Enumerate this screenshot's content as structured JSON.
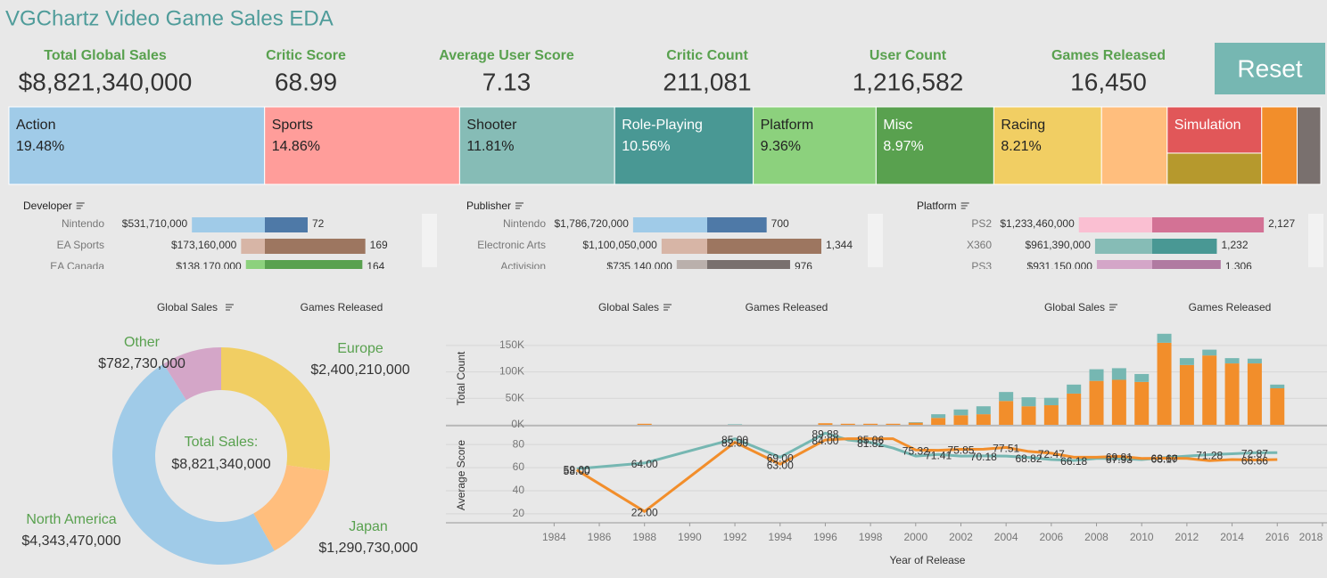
{
  "header": {
    "title": "VGChartz Video Game Sales EDA"
  },
  "kpis": [
    {
      "label": "Total Global Sales",
      "value": "$8,821,340,000"
    },
    {
      "label": "Critic Score",
      "value": "68.99"
    },
    {
      "label": "Average User Score",
      "value": "7.13"
    },
    {
      "label": "Critic Count",
      "value": "211,081"
    },
    {
      "label": "User Count",
      "value": "1,216,582"
    },
    {
      "label": "Games Released",
      "value": "16,450"
    }
  ],
  "reset": "Reset",
  "chart_data": [
    {
      "type": "treemap",
      "categories": [
        "Action",
        "Sports",
        "Shooter",
        "Role-Playing",
        "Platform",
        "Misc",
        "Racing",
        null,
        "Simulation",
        null,
        null,
        null
      ],
      "values": [
        19.48,
        14.86,
        11.81,
        10.56,
        9.36,
        8.97,
        8.21,
        5.0,
        4.3,
        2.9,
        2.7,
        1.8
      ],
      "value_labels": [
        "19.48%",
        "14.86%",
        "11.81%",
        "10.56%",
        "9.36%",
        "8.97%",
        "8.21%",
        null,
        null,
        null,
        null,
        null
      ],
      "colors": [
        "#a0cbe8",
        "#ff9d9a",
        "#86bcb6",
        "#499894",
        "#8cd17d",
        "#59a14f",
        "#f1ce63",
        "#ffbe7d",
        "#e15759",
        "#b6992d",
        "#f28e2b",
        "#79706e"
      ]
    },
    {
      "type": "dual-bar",
      "title": "Developer",
      "categories": [
        "Nintendo",
        "EA Sports",
        "EA Canada"
      ],
      "xlim": [
        0,
        650000000
      ],
      "x2lim": [
        0,
        150
      ],
      "series": [
        {
          "values": [
            531710000,
            173160000,
            138170000
          ],
          "value_labels": [
            "$531,710,000",
            "$173,160,000",
            "$138,170,000"
          ],
          "colors": [
            "#a0cbe8",
            "#d7b5a6",
            "#8cd17d"
          ]
        },
        {
          "values": [
            72,
            169,
            164
          ],
          "value_labels": [
            "72",
            "169",
            "164"
          ],
          "colors": [
            "#4e79a7",
            "#9d7660",
            "#59a14f"
          ]
        }
      ]
    },
    {
      "type": "dual-bar",
      "title": "Publisher",
      "categories": [
        "Nintendo",
        "Electronic Arts",
        "Activision"
      ],
      "xlim": [
        0,
        2150000000
      ],
      "x2lim": [
        0,
        1050
      ],
      "series": [
        {
          "values": [
            1786720000,
            1100050000,
            735140000
          ],
          "value_labels": [
            "$1,786,720,000",
            "$1,100,050,000",
            "$735,140,000"
          ],
          "colors": [
            "#a0cbe8",
            "#d7b5a6",
            "#bab0ac"
          ]
        },
        {
          "values": [
            700,
            1344,
            976
          ],
          "value_labels": [
            "700",
            "1,344",
            "976"
          ],
          "colors": [
            "#4e79a7",
            "#9d7660",
            "#79706e"
          ]
        }
      ]
    },
    {
      "type": "dual-bar",
      "title": "Platform",
      "categories": [
        "PS2",
        "X360",
        "PS3"
      ],
      "xlim": [
        0,
        1500000000
      ],
      "x2lim": [
        0,
        1700
      ],
      "series": [
        {
          "values": [
            1233460000,
            961390000,
            931150000
          ],
          "value_labels": [
            "$1,233,460,000",
            "$961,390,000",
            "$931,150,000"
          ],
          "colors": [
            "#fabfd2",
            "#86bcb6",
            "#d4a6c8"
          ]
        },
        {
          "values": [
            2127,
            1232,
            1306
          ],
          "value_labels": [
            "2,127",
            "1,232",
            "1,306"
          ],
          "colors": [
            "#d37295",
            "#499894",
            "#b07aa1"
          ]
        }
      ]
    },
    {
      "type": "pie",
      "title": "Total Sales:",
      "total_label": "$8,821,340,000",
      "sort_labels": [
        "Global Sales",
        "Games Released"
      ],
      "categories": [
        "Europe",
        "Japan",
        "North America",
        "Other"
      ],
      "values": [
        2400210000,
        1290730000,
        4343470000,
        782730000
      ],
      "value_labels": [
        "$2,400,210,000",
        "$1,290,730,000",
        "$4,343,470,000",
        "$782,730,000"
      ],
      "colors": [
        "#f1ce63",
        "#ffbe7d",
        "#a0cbe8",
        "#d4a6c8"
      ]
    },
    {
      "type": "bar",
      "y_label": "Total Count",
      "sort_labels": [
        "Global Sales",
        "Games Released",
        "Global Sales",
        "Games Released"
      ],
      "x": [
        1988,
        1992,
        1996,
        1997,
        1998,
        1999,
        2000,
        2001,
        2002,
        2003,
        2004,
        2005,
        2006,
        2007,
        2008,
        2009,
        2010,
        2011,
        2012,
        2013,
        2014,
        2015,
        2016
      ],
      "xlim": [
        1983,
        2018.2
      ],
      "ylim": [
        0,
        175000
      ],
      "yticks": [
        {
          "value": 0,
          "label": "0K"
        },
        {
          "value": 50000,
          "label": "50K"
        },
        {
          "value": 100000,
          "label": "100K"
        },
        {
          "value": 150000,
          "label": "150K"
        }
      ],
      "stacked": true,
      "series": [
        {
          "color": "#f28e2b",
          "values": [
            2000,
            0,
            3000,
            2000,
            2000,
            2000,
            4000,
            13000,
            18000,
            20000,
            45000,
            35000,
            37000,
            59000,
            83000,
            85000,
            81000,
            155000,
            113000,
            131000,
            116000,
            116000,
            69000
          ]
        },
        {
          "color": "#76b7b2",
          "values": [
            0,
            1000,
            0,
            0,
            0,
            0,
            1000,
            7000,
            11000,
            15000,
            17000,
            17000,
            14000,
            17000,
            22000,
            22000,
            15000,
            17000,
            13000,
            11000,
            10000,
            9000,
            7000
          ]
        }
      ]
    },
    {
      "type": "line",
      "y_label": "Average Score",
      "x_label": "Year of Release",
      "x": [
        1985,
        1988,
        1992,
        1994,
        1996,
        1997,
        1998,
        1999,
        2000,
        2001,
        2002,
        2003,
        2004,
        2005,
        2006,
        2007,
        2008,
        2009,
        2010,
        2011,
        2012,
        2013,
        2014,
        2015,
        2016
      ],
      "xlim": [
        1983,
        2018.2
      ],
      "xticks": [
        1984,
        1986,
        1988,
        1990,
        1992,
        1994,
        1996,
        1998,
        2000,
        2002,
        2004,
        2006,
        2008,
        2010,
        2012,
        2014,
        2016,
        2018
      ],
      "ylim": [
        13,
        94
      ],
      "yticks": [
        20,
        40,
        60,
        80
      ],
      "series": [
        {
          "color": "#76b7b2",
          "values": [
            59,
            64,
            85,
            69,
            89.88,
            84,
            81.82,
            77,
            70,
            71.41,
            70,
            70.18,
            70,
            68.82,
            67,
            66.18,
            68,
            67.93,
            67,
            68.6,
            70,
            71.28,
            72,
            72.87,
            73
          ],
          "value_labels": [
            "59.00",
            "64.00",
            "85.00",
            "69.00",
            "89.88",
            null,
            "81.82",
            null,
            null,
            "71.41",
            null,
            "70.18",
            null,
            "68.82",
            null,
            "66.18",
            null,
            "67.93",
            null,
            "68.60",
            null,
            "71.28",
            null,
            "72.87",
            null
          ]
        },
        {
          "color": "#f28e2b",
          "values": [
            58,
            22,
            82,
            63,
            84,
            85,
            85.06,
            85,
            75.32,
            75,
            75.85,
            76,
            77.51,
            74,
            72.47,
            69,
            69,
            69.81,
            68,
            68.17,
            68,
            66,
            67,
            66.66,
            67
          ],
          "value_labels": [
            "58.00",
            "22.00",
            "82.00",
            "63.00",
            "84.00",
            null,
            "85.06",
            null,
            "75.32",
            null,
            "75.85",
            null,
            "77.51",
            null,
            "72.47",
            null,
            null,
            "69.81",
            null,
            "68.17",
            null,
            null,
            null,
            "66.66",
            null
          ]
        }
      ]
    }
  ]
}
